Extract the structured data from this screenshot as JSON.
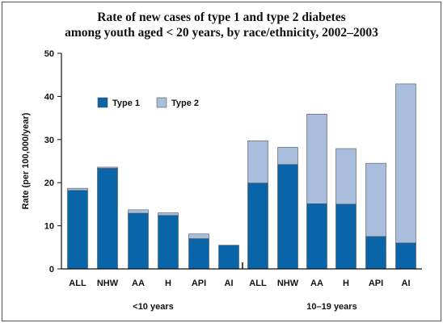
{
  "chart_data": {
    "type": "bar",
    "stacked": true,
    "title": [
      "Rate of new cases of type 1 and type 2 diabetes",
      "among youth aged < 20 years, by race/ethnicity, 2002–2003"
    ],
    "ylabel": "Rate (per 100,000/year)",
    "ylim": [
      0,
      50
    ],
    "yticks": [
      0,
      10,
      20,
      30,
      40,
      50
    ],
    "legend_position": "upper-left",
    "categories": [
      "ALL",
      "NHW",
      "AA",
      "H",
      "API",
      "AI",
      "ALL",
      "NHW",
      "AA",
      "H",
      "API",
      "AI"
    ],
    "groups": [
      {
        "label": "<10 years",
        "start": 0,
        "end": 5
      },
      {
        "label": "10–19 years",
        "start": 6,
        "end": 11
      }
    ],
    "series": [
      {
        "name": "Type 1",
        "color": "#0a64a8",
        "values": [
          18.2,
          23.3,
          12.9,
          12.4,
          7.0,
          5.5,
          19.9,
          24.2,
          15.1,
          15.0,
          7.5,
          6.0
        ]
      },
      {
        "name": "Type 2",
        "color": "#a9bedd",
        "values": [
          0.5,
          0.3,
          0.8,
          0.6,
          1.1,
          0.0,
          9.8,
          4.0,
          20.8,
          12.9,
          17.0,
          36.9
        ]
      }
    ]
  }
}
